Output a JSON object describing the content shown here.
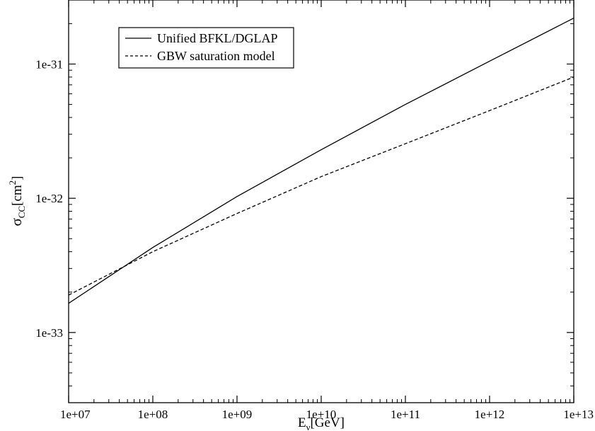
{
  "chart_data": {
    "type": "line",
    "xscale": "log",
    "yscale": "log",
    "xlim": [
      10000000.0,
      10000000000000.0
    ],
    "ylim": [
      3e-34,
      3e-31
    ],
    "grid": false,
    "legend_position": "top-left",
    "x_ticks": [
      {
        "value": 10000000.0,
        "label": "1e+07"
      },
      {
        "value": 100000000.0,
        "label": "1e+08"
      },
      {
        "value": 1000000000.0,
        "label": "1e+09"
      },
      {
        "value": 10000000000.0,
        "label": "1e+10"
      },
      {
        "value": 100000000000.0,
        "label": "1e+11"
      },
      {
        "value": 1000000000000.0,
        "label": "1e+12"
      },
      {
        "value": 10000000000000.0,
        "label": "1e+13"
      }
    ],
    "y_ticks": [
      {
        "value": 1e-33,
        "label": "1e-33"
      },
      {
        "value": 1e-32,
        "label": "1e-32"
      },
      {
        "value": 1e-31,
        "label": "1e-31"
      }
    ],
    "xlabel": {
      "main": "E",
      "sub": "ν",
      "rest": "[GeV]"
    },
    "ylabel": {
      "main": "σ",
      "sub": "CC",
      "rest": "[cm",
      "sup": "2",
      "close": "]"
    },
    "series": [
      {
        "name": "Unified BFKL/DGLAP",
        "style": "solid",
        "color": "#000000",
        "x": [
          10000000.0,
          100000000.0,
          1000000000.0,
          10000000000.0,
          100000000000.0,
          1000000000000.0,
          10000000000000.0
        ],
        "y": [
          1.65e-33,
          4.3e-33,
          1.03e-32,
          2.3e-32,
          5e-32,
          1.05e-31,
          2.2e-31
        ]
      },
      {
        "name": "GBW saturation model",
        "style": "dashed",
        "color": "#000000",
        "x": [
          10000000.0,
          100000000.0,
          1000000000.0,
          10000000000.0,
          100000000000.0,
          1000000000000.0,
          10000000000000.0
        ],
        "y": [
          1.9e-33,
          4e-33,
          7.7e-33,
          1.45e-32,
          2.55e-32,
          4.5e-32,
          8e-32
        ]
      }
    ]
  }
}
